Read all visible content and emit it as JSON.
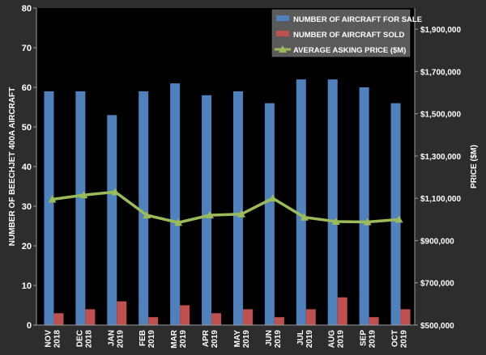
{
  "chart_data": {
    "type": "bar",
    "categories": [
      [
        "NOV",
        "2018"
      ],
      [
        "DEC",
        "2018"
      ],
      [
        "JAN",
        "2019"
      ],
      [
        "FEB",
        "2019"
      ],
      [
        "MAR",
        "2019"
      ],
      [
        "APR",
        "2019"
      ],
      [
        "MAY",
        "2019"
      ],
      [
        "JUN",
        "2019"
      ],
      [
        "JUL",
        "2019"
      ],
      [
        "AUG",
        "2019"
      ],
      [
        "SEP",
        "2019"
      ],
      [
        "OCT",
        "2019"
      ]
    ],
    "series": [
      {
        "name": "NUMBER OF AIRCRAFT FOR SALE",
        "type": "bar",
        "axis": "left",
        "color": "#4f81bd",
        "values": [
          59,
          59,
          53,
          59,
          61,
          58,
          59,
          56,
          62,
          62,
          60,
          56
        ]
      },
      {
        "name": "NUMBER OF AIRCRAFT SOLD",
        "type": "bar",
        "axis": "left",
        "color": "#c0504d",
        "values": [
          3,
          4,
          6,
          2,
          5,
          3,
          4,
          2,
          4,
          7,
          2,
          4
        ]
      },
      {
        "name": "AVERAGE ASKING PRICE ($M)",
        "type": "line",
        "axis": "right",
        "color": "#9bbb59",
        "values": [
          1095000,
          1115000,
          1130000,
          1020000,
          985000,
          1020000,
          1025000,
          1100000,
          1010000,
          990000,
          988000,
          1000000
        ]
      }
    ],
    "ylabel": "NUMBER OF BEECHJET 400A AIRCRAFT",
    "y2label": "PRICE ($M)",
    "ylim": [
      0,
      80
    ],
    "yticks": [
      "0",
      "10",
      "20",
      "30",
      "40",
      "50",
      "60",
      "70",
      "80"
    ],
    "y2lim": [
      500000,
      2000000
    ],
    "y2ticks": [
      "$500,000",
      "$700,000",
      "$900,000",
      "$1,100,000",
      "$1,300,000",
      "$1,500,000",
      "$1,700,000",
      "$1,900,000"
    ],
    "grid": false,
    "legend_position": "top-right",
    "colors": {
      "background": "#000000",
      "outer": "#2d2d2d",
      "text": "#ffffff",
      "legend_bg": "#5a5a5a"
    }
  }
}
